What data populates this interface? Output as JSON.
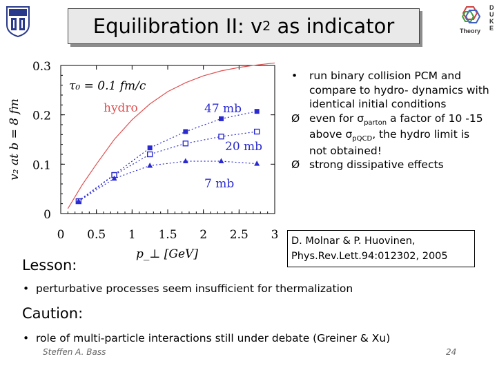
{
  "slide": {
    "title_main": "Equilibration II: v",
    "title_sub": "2",
    "title_rest": " as indicator",
    "theory_logo_text": "Theory",
    "duke_logo_letters": "DUKE",
    "bullets": [
      {
        "mark": "•",
        "text": "run binary collision PCM and compare to hydro- dynamics with identical initial conditions"
      },
      {
        "mark": "Ø",
        "pre": "even for σ",
        "sub1": "parton",
        "mid": " a factor of 10 -15 above σ",
        "sub2": "pQCD",
        "post": ", the hydro limit is not obtained!"
      },
      {
        "mark": "Ø",
        "text": "strong dissipative effects"
      }
    ],
    "reference_line1": "D. Molnar & P. Huovinen,",
    "reference_line2": "Phys.Rev.Lett.94:012302, 2005",
    "lesson_heading": "Lesson:",
    "lesson_bullet": "perturbative processes seem insufficient for thermalization",
    "caution_heading": "Caution:",
    "caution_bullet": "role of multi-particle interactions still under debate (Greiner & Xu)",
    "author": "Steffen A. Bass",
    "page_number": "24",
    "bullet_symbol": "•"
  },
  "chart_data": {
    "type": "line",
    "title": "",
    "xlabel": "p_⊥ [GeV]",
    "ylabel": "v₂ at b = 8 fm",
    "xlim": [
      0,
      3
    ],
    "ylim": [
      0,
      0.3
    ],
    "x_ticks": [
      "0",
      "0.5",
      "1",
      "1.5",
      "2",
      "2.5",
      "3"
    ],
    "y_ticks": [
      "0",
      "0.1",
      "0.2",
      "0.3"
    ],
    "grid": false,
    "annotation": "τ₀ = 0.1 fm/c",
    "colors": {
      "hydro": "#e05050",
      "pcm": "#2a2ad0"
    },
    "series": [
      {
        "name": "hydro",
        "style": "solid",
        "x": [
          0.1,
          0.3,
          0.5,
          0.75,
          1.0,
          1.25,
          1.5,
          1.75,
          2.0,
          2.25,
          2.5,
          2.75,
          3.0
        ],
        "values": [
          0.01,
          0.058,
          0.1,
          0.15,
          0.19,
          0.222,
          0.247,
          0.265,
          0.279,
          0.289,
          0.296,
          0.301,
          0.305
        ]
      },
      {
        "name": "47 mb",
        "style": "dotted",
        "marker": "square",
        "x": [
          0.25,
          0.75,
          1.25,
          1.75,
          2.25,
          2.75
        ],
        "values": [
          0.026,
          0.079,
          0.133,
          0.166,
          0.192,
          0.207
        ]
      },
      {
        "name": "20 mb",
        "style": "dotted",
        "marker": "open-square",
        "x": [
          0.25,
          0.75,
          1.25,
          1.75,
          2.25,
          2.75
        ],
        "values": [
          0.025,
          0.078,
          0.12,
          0.142,
          0.156,
          0.166
        ]
      },
      {
        "name": "7 mb",
        "style": "dotted",
        "marker": "triangle",
        "x": [
          0.25,
          0.75,
          1.25,
          1.75,
          2.25,
          2.75
        ],
        "values": [
          0.025,
          0.071,
          0.097,
          0.106,
          0.106,
          0.101
        ]
      }
    ]
  }
}
